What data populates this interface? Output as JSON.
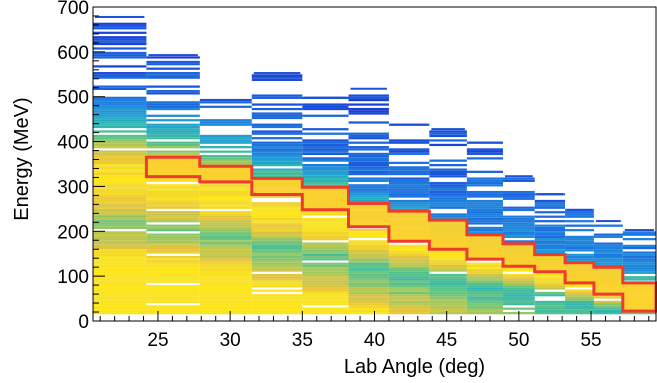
{
  "chart_data": {
    "type": "heatmap",
    "title": "",
    "xlabel": "Lab Angle (deg)",
    "ylabel": "Energy (MeV)",
    "xlim": [
      20.5,
      59.5
    ],
    "ylim": [
      0,
      700
    ],
    "x_ticks": [
      25,
      30,
      35,
      40,
      45,
      50,
      55
    ],
    "y_ticks": [
      0,
      100,
      200,
      300,
      400,
      500,
      600,
      700
    ],
    "grid": false,
    "colormap": [
      "#1a3fd6",
      "#1d6fe0",
      "#1f9ad8",
      "#2bb3b8",
      "#55c28a",
      "#a9c85a",
      "#e8c33a",
      "#fbe41e"
    ],
    "columns": [
      {
        "x0": 20.5,
        "x1": 24.2,
        "ymax": 680,
        "peak": 310
      },
      {
        "x0": 24.2,
        "x1": 27.9,
        "ymax": 595,
        "peak": 295
      },
      {
        "x0": 27.9,
        "x1": 31.5,
        "ymax": 495,
        "peak": 275
      },
      {
        "x0": 31.5,
        "x1": 35.0,
        "ymax": 555,
        "peak": 240
      },
      {
        "x0": 35.0,
        "x1": 38.2,
        "ymax": 500,
        "peak": 220
      },
      {
        "x0": 38.2,
        "x1": 41.0,
        "ymax": 520,
        "peak": 185
      },
      {
        "x0": 41.0,
        "x1": 43.8,
        "ymax": 440,
        "peak": 165
      },
      {
        "x0": 43.8,
        "x1": 46.4,
        "ymax": 430,
        "peak": 145
      },
      {
        "x0": 46.4,
        "x1": 48.9,
        "ymax": 400,
        "peak": 125
      },
      {
        "x0": 48.9,
        "x1": 51.1,
        "ymax": 325,
        "peak": 110
      },
      {
        "x0": 51.1,
        "x1": 53.2,
        "ymax": 285,
        "peak": 95
      },
      {
        "x0": 53.2,
        "x1": 55.2,
        "ymax": 250,
        "peak": 80
      },
      {
        "x0": 55.2,
        "x1": 57.2,
        "ymax": 225,
        "peak": 65
      },
      {
        "x0": 57.2,
        "x1": 59.5,
        "ymax": 205,
        "peak": 50
      }
    ],
    "selection_region": {
      "color": "#ee3b2e",
      "steps": [
        {
          "x0": 24.2,
          "x1": 27.9,
          "upper": 365,
          "lower": 322
        },
        {
          "x0": 27.9,
          "x1": 31.5,
          "upper": 345,
          "lower": 310
        },
        {
          "x0": 31.5,
          "x1": 35.0,
          "upper": 318,
          "lower": 282
        },
        {
          "x0": 35.0,
          "x1": 38.2,
          "upper": 298,
          "lower": 248
        },
        {
          "x0": 38.2,
          "x1": 41.0,
          "upper": 262,
          "lower": 210
        },
        {
          "x0": 41.0,
          "x1": 43.8,
          "upper": 245,
          "lower": 178
        },
        {
          "x0": 43.8,
          "x1": 46.4,
          "upper": 225,
          "lower": 160
        },
        {
          "x0": 46.4,
          "x1": 48.9,
          "upper": 192,
          "lower": 138
        },
        {
          "x0": 48.9,
          "x1": 51.1,
          "upper": 172,
          "lower": 122
        },
        {
          "x0": 51.1,
          "x1": 53.2,
          "upper": 148,
          "lower": 110
        },
        {
          "x0": 53.2,
          "x1": 55.2,
          "upper": 130,
          "lower": 85
        },
        {
          "x0": 55.2,
          "x1": 57.2,
          "upper": 120,
          "lower": 60
        },
        {
          "x0": 57.2,
          "x1": 59.5,
          "upper": 85,
          "lower": 22
        }
      ]
    }
  }
}
